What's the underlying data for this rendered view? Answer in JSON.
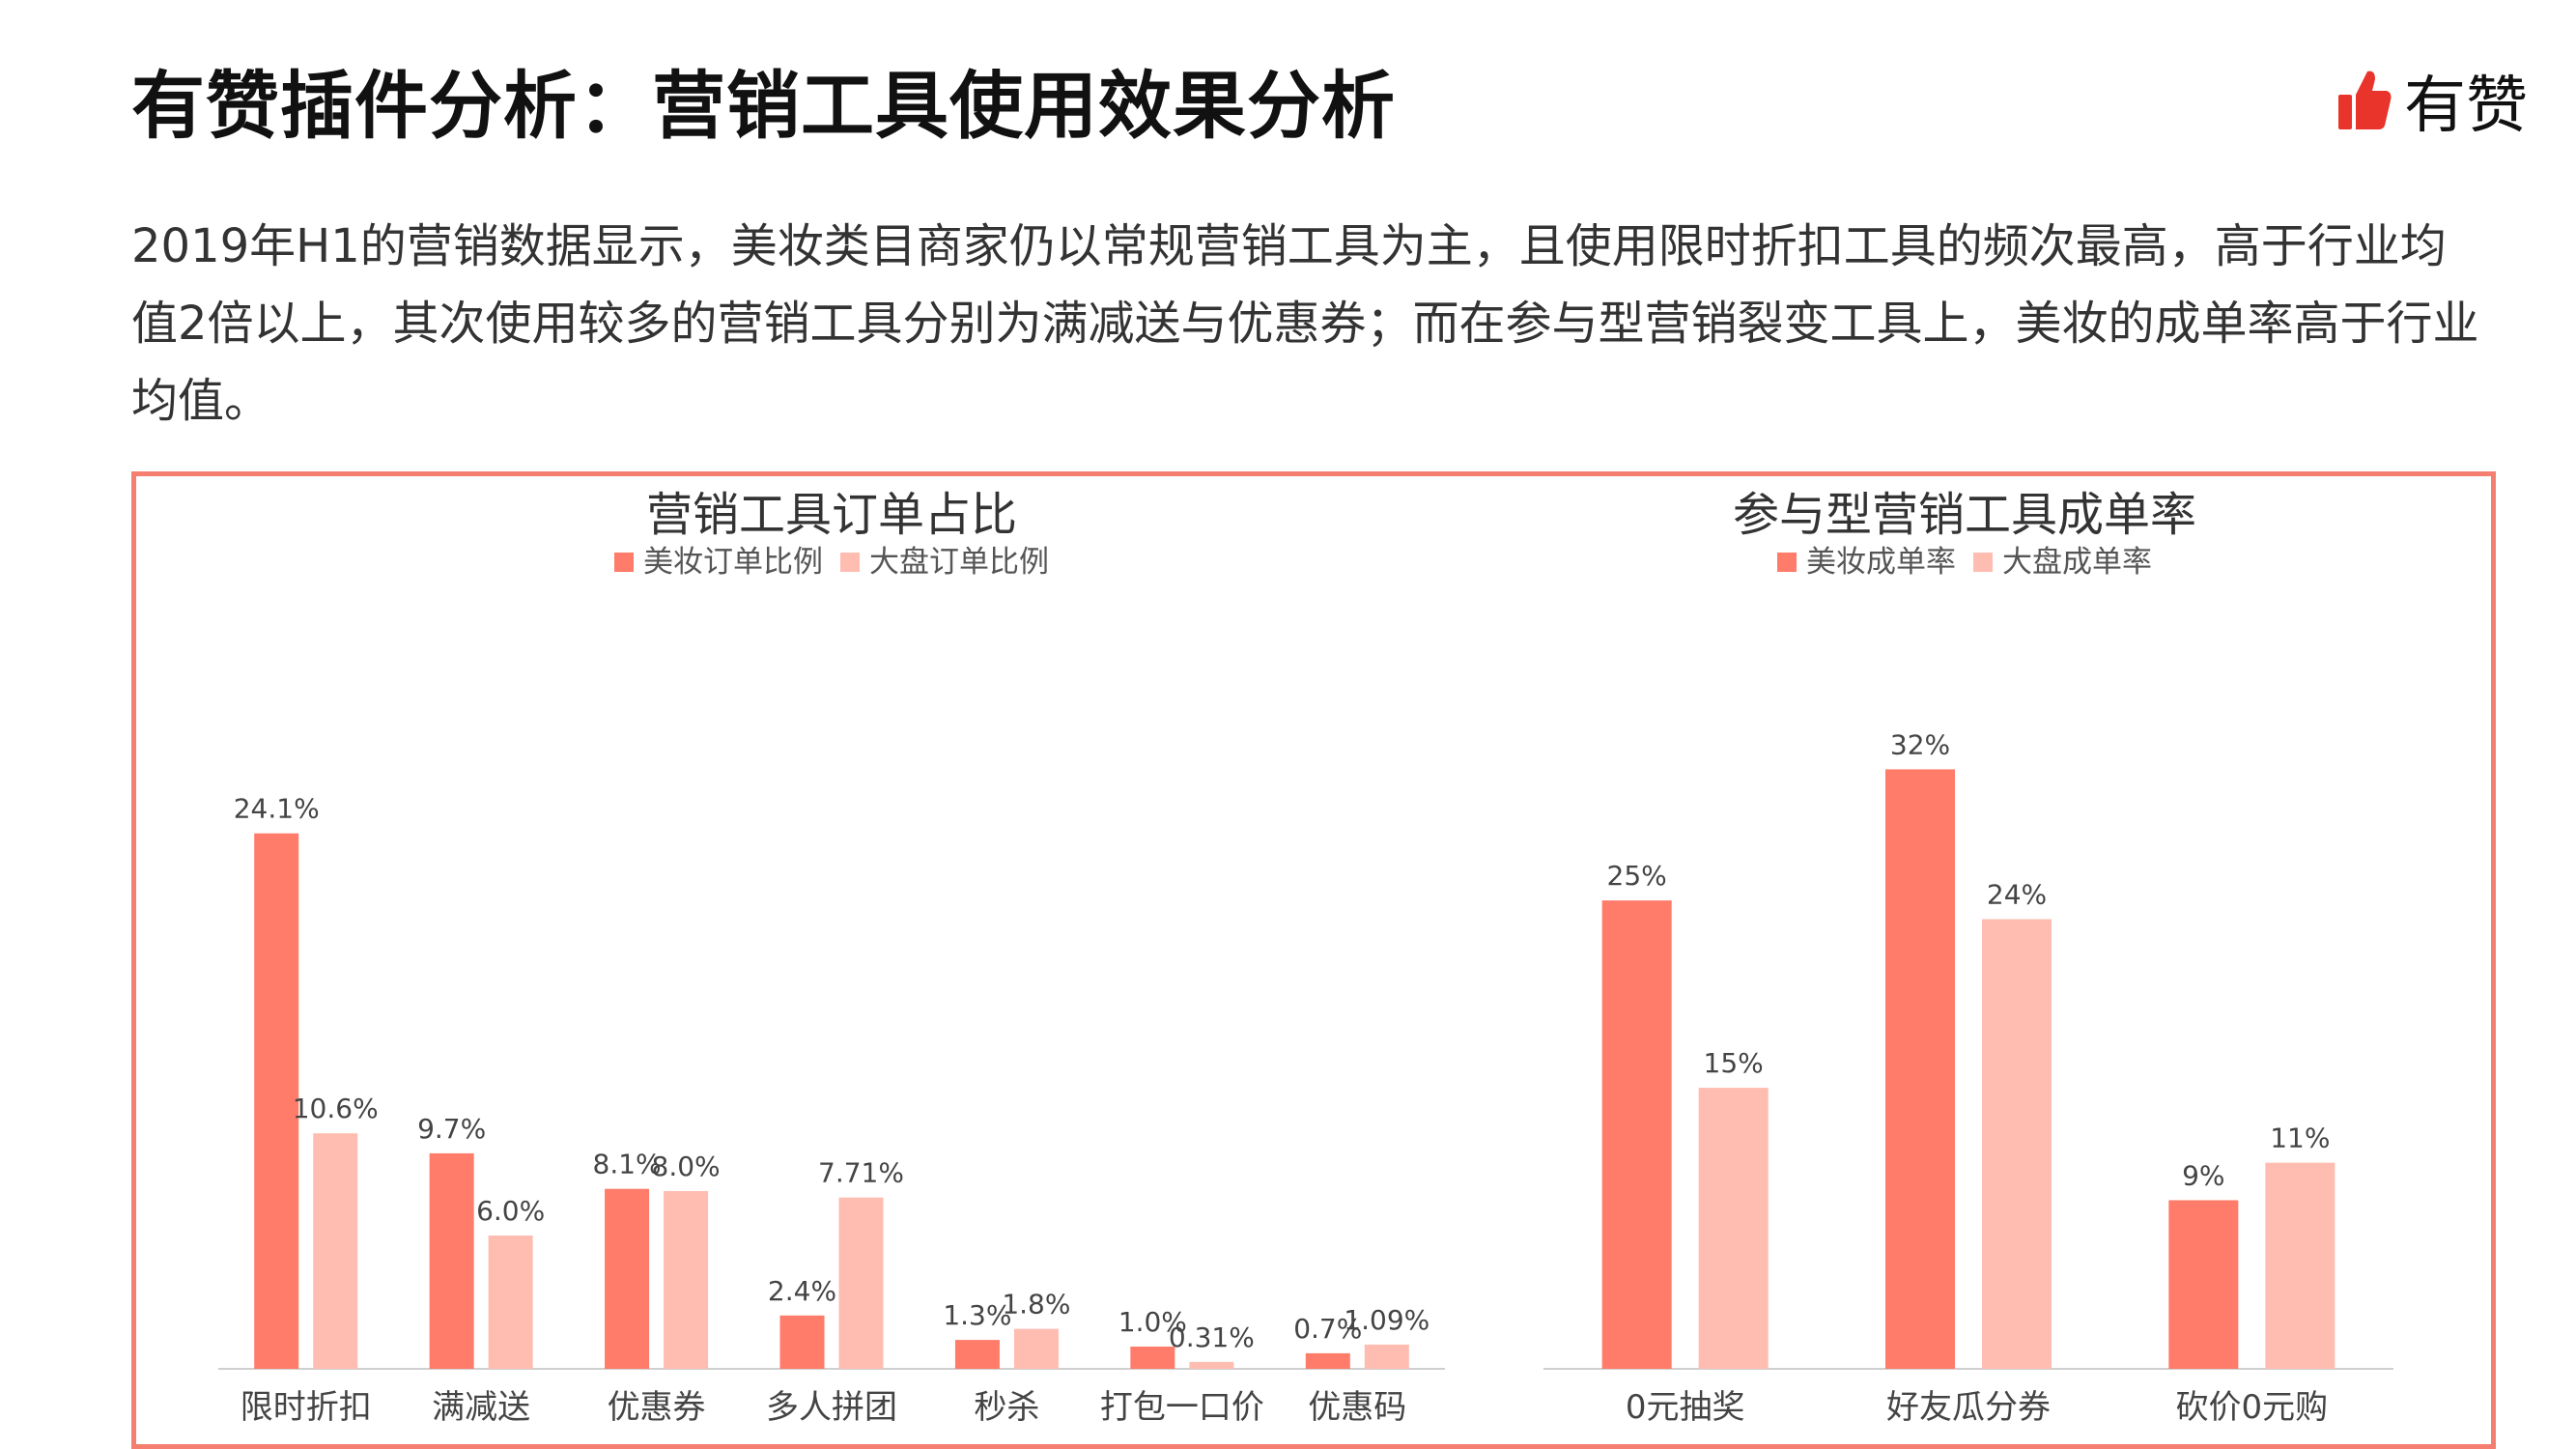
{
  "header": {
    "title": "有赞插件分析：营销工具使用效果分析",
    "logo_text": "有赞",
    "logo_icon": "thumbs-up-icon",
    "accent_color": "#e8342a"
  },
  "description": "2019年H1的营销数据显示，美妆类目商家仍以常规营销工具为主，且使用限时折扣工具的频次最高，高于行业均值2倍以上，其次使用较多的营销工具分别为满减送与优惠券；而在参与型营销裂变工具上，美妆的成单率高于行业均值。",
  "colors": {
    "primary": "#ff7b6a",
    "secondary": "#ffbdb1",
    "frame": "#f47e6f"
  },
  "chart_data": [
    {
      "type": "bar",
      "title": "营销工具订单占比",
      "categories": [
        "限时折扣",
        "满减送",
        "优惠券",
        "多人拼团",
        "秒杀",
        "打包一口价",
        "优惠码"
      ],
      "series": [
        {
          "name": "美妆订单比例",
          "values": [
            24.1,
            9.7,
            8.1,
            2.4,
            1.3,
            1.0,
            0.7
          ],
          "labels": [
            "24.1%",
            "9.7%",
            "8.1%",
            "2.4%",
            "1.3%",
            "1.0%",
            "0.7%"
          ]
        },
        {
          "name": "大盘订单比例",
          "values": [
            10.6,
            6.0,
            8.0,
            7.71,
            1.8,
            0.31,
            1.09
          ],
          "labels": [
            "10.6%",
            "6.0%",
            "8.0%",
            "7.71%",
            "1.8%",
            "0.31%",
            "1.09%"
          ]
        }
      ],
      "ylim": [
        0,
        25
      ],
      "grid": false,
      "legend": "top-center"
    },
    {
      "type": "bar",
      "title": "参与型营销工具成单率",
      "categories": [
        "0元抽奖",
        "好友瓜分券",
        "砍价0元购"
      ],
      "series": [
        {
          "name": "美妆成单率",
          "values": [
            25,
            32,
            9
          ],
          "labels": [
            "25%",
            "32%",
            "9%"
          ]
        },
        {
          "name": "大盘成单率",
          "values": [
            15,
            24,
            11
          ],
          "labels": [
            "15%",
            "24%",
            "11%"
          ]
        }
      ],
      "ylim": [
        0,
        33
      ],
      "grid": false,
      "legend": "top-center"
    }
  ]
}
